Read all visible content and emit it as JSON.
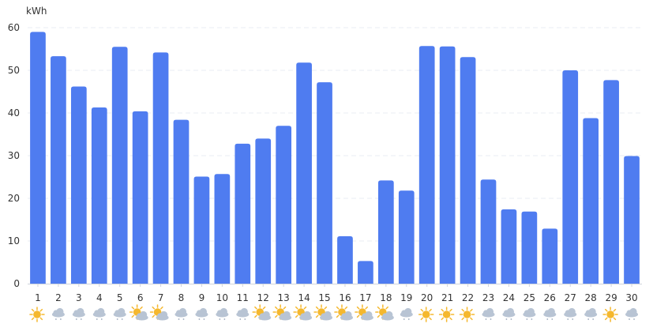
{
  "chart_data": {
    "type": "bar",
    "ylabel": "kWh",
    "ylim": [
      0,
      60
    ],
    "yticks": [
      0,
      10,
      20,
      30,
      40,
      50,
      60
    ],
    "grid": true,
    "categories": [
      "1",
      "2",
      "3",
      "4",
      "5",
      "6",
      "7",
      "8",
      "9",
      "10",
      "11",
      "12",
      "13",
      "14",
      "15",
      "16",
      "17",
      "18",
      "19",
      "20",
      "21",
      "22",
      "23",
      "24",
      "25",
      "26",
      "27",
      "28",
      "29",
      "30"
    ],
    "series": [
      {
        "values": [
          59,
          53.3,
          46.2,
          41.3,
          55.5,
          40.4,
          54.2,
          38.4,
          25.1,
          25.7,
          32.8,
          34,
          37,
          51.8,
          47.2,
          11.1,
          5.3,
          24.2,
          21.8,
          55.7,
          55.6,
          53.1,
          24.4,
          17.4,
          16.9,
          12.9,
          50,
          38.8,
          47.7,
          29.9
        ]
      }
    ],
    "weather_icons": [
      "sun-icon",
      "rain-cloud-icon",
      "rain-cloud-icon",
      "rain-cloud-icon",
      "rain-cloud-icon",
      "partly-cloudy-icon",
      "partly-cloudy-icon",
      "rain-cloud-icon",
      "rain-cloud-icon",
      "rain-cloud-icon",
      "rain-cloud-icon",
      "partly-cloudy-icon",
      "partly-cloudy-icon",
      "partly-cloudy-icon",
      "partly-cloudy-icon",
      "partly-cloudy-icon",
      "partly-cloudy-icon",
      "partly-cloudy-icon",
      "rain-cloud-icon",
      "sun-icon",
      "sun-icon",
      "sun-icon",
      "rain-cloud-icon",
      "rain-cloud-icon",
      "rain-cloud-icon",
      "rain-cloud-icon",
      "rain-cloud-icon",
      "rain-cloud-icon",
      "sun-icon",
      "rain-cloud-icon"
    ],
    "colors": {
      "bar": "#4f7cf0",
      "grid": "#e9edf3",
      "axis": "#d0d4dc",
      "text": "#333333",
      "sun": "#f5b82e",
      "cloud": "#b8c4d4",
      "rain": "#9aa8bb"
    }
  }
}
